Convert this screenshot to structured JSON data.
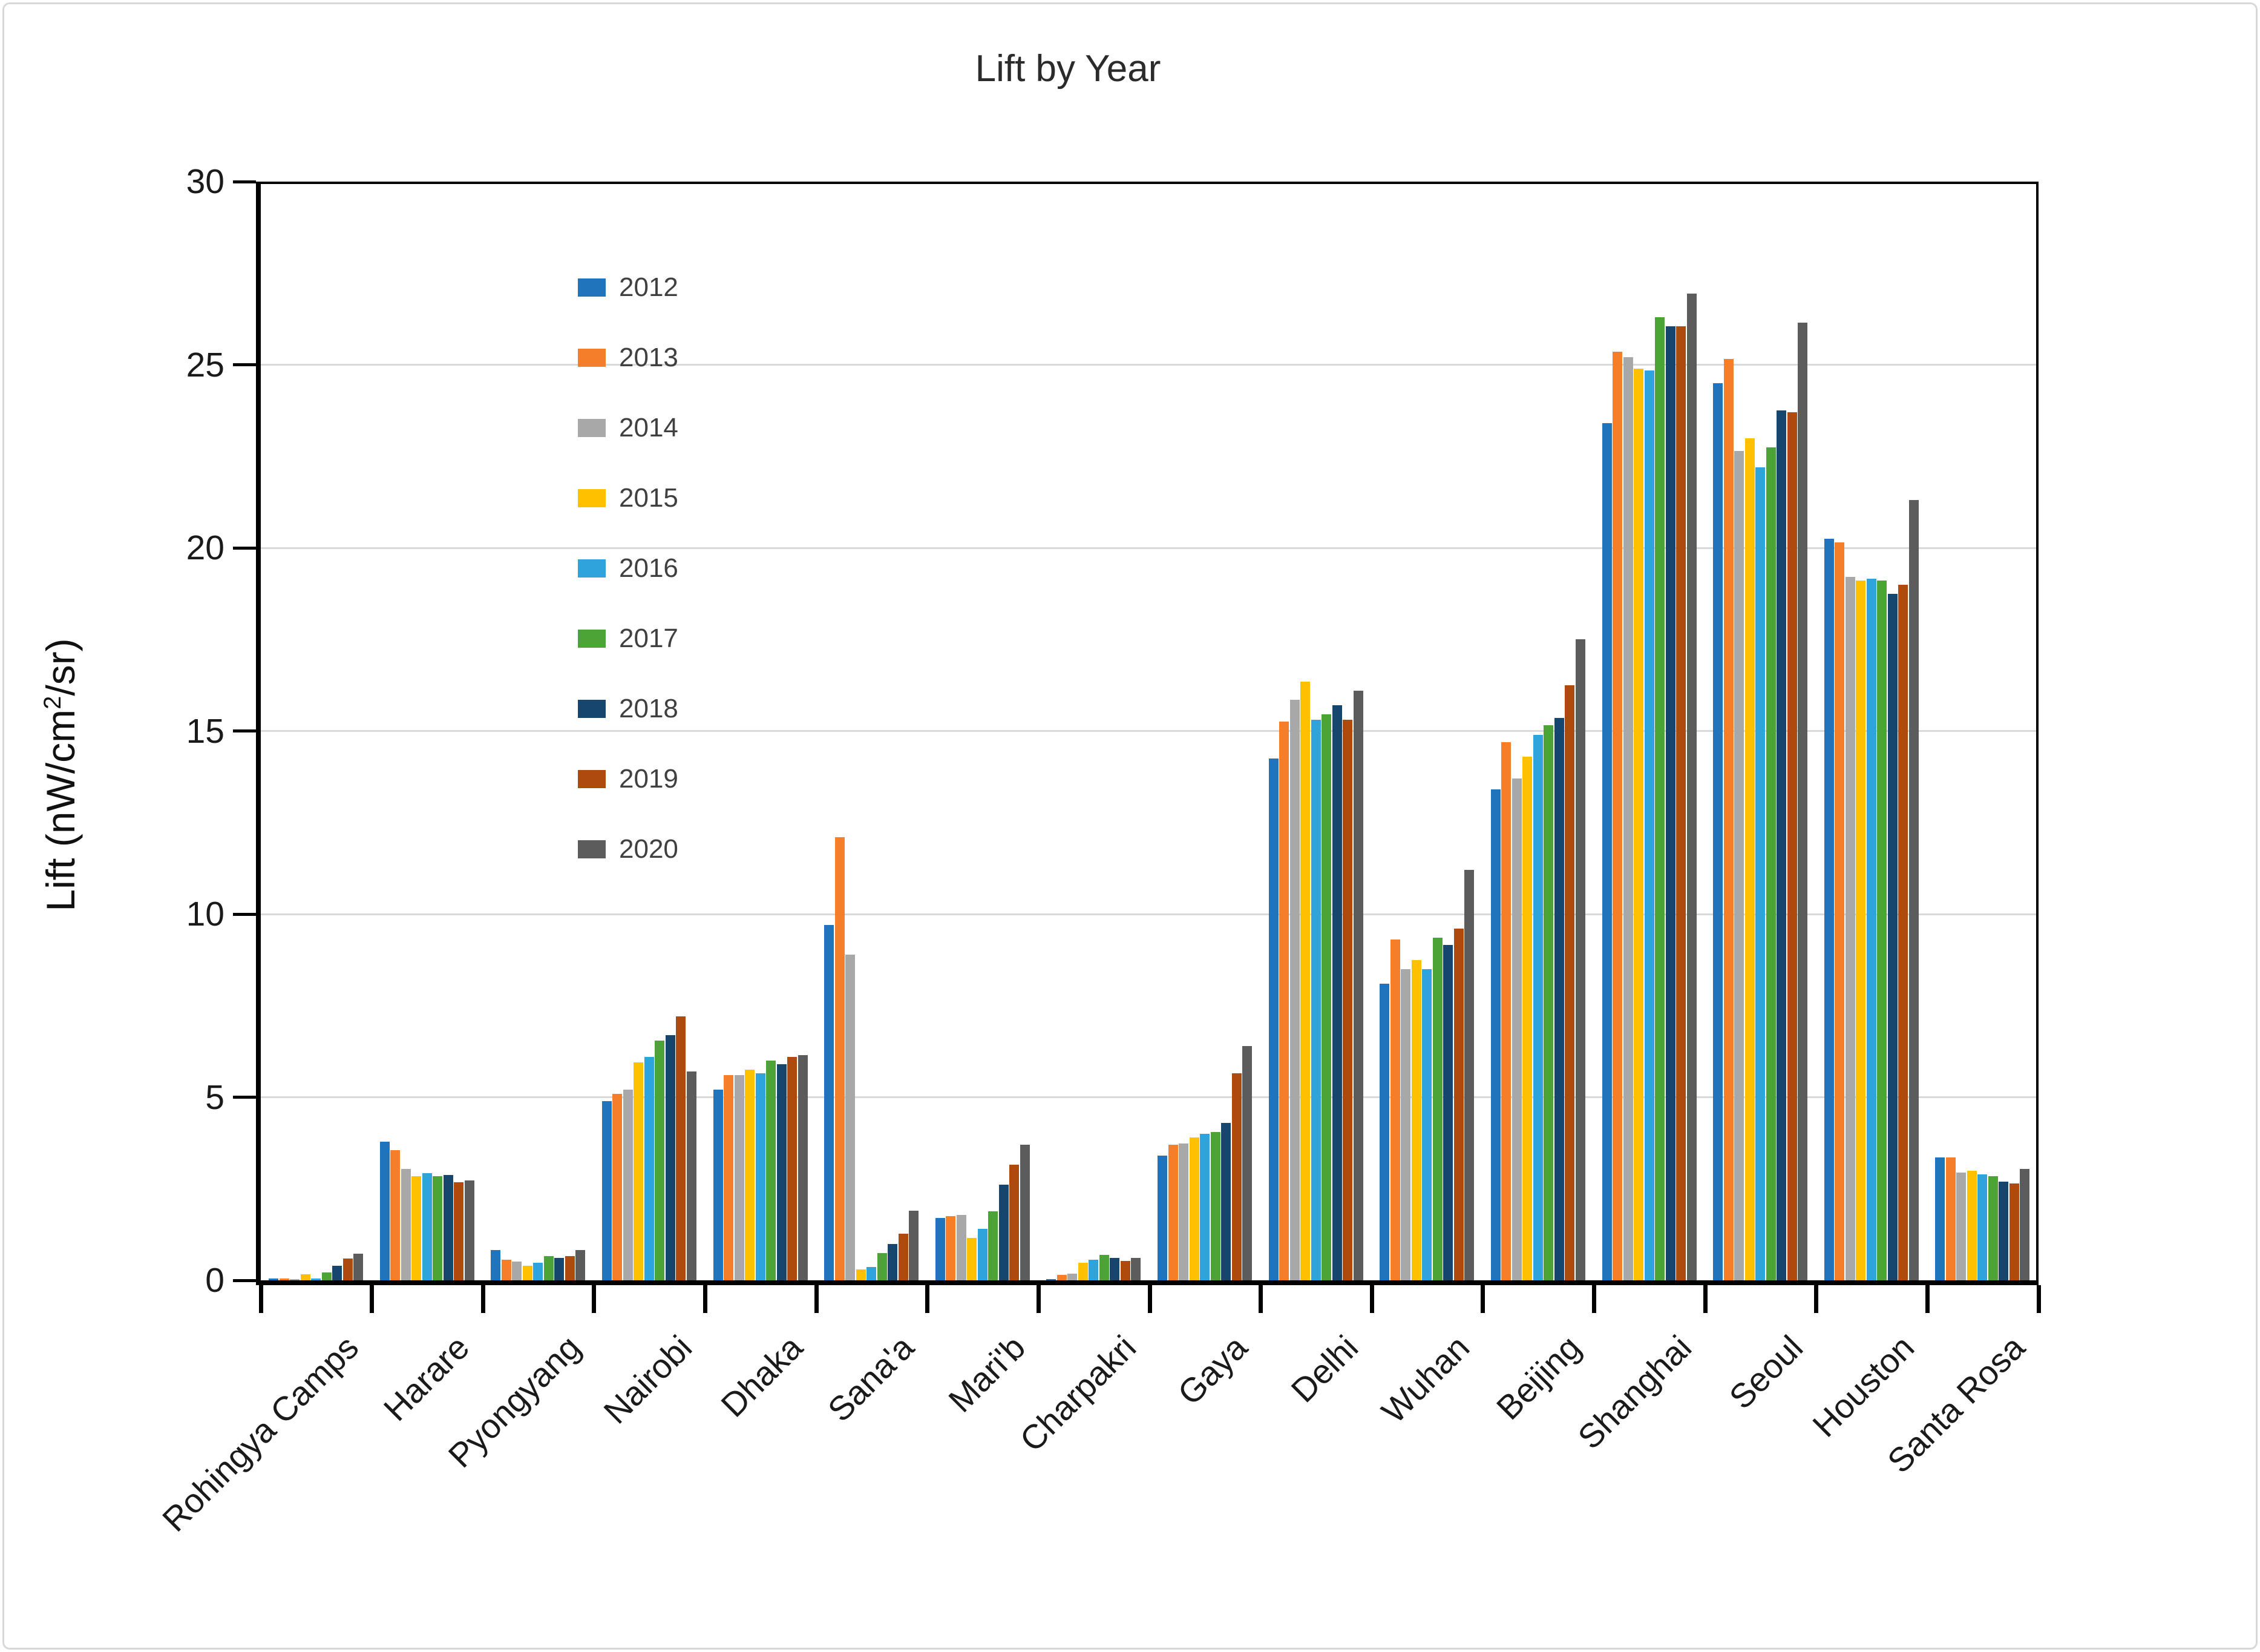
{
  "chart_data": {
    "type": "bar",
    "title": "Lift by Year",
    "ylabel_parts": {
      "prefix": "Lift (nW/cm",
      "sup": "2",
      "suffix": "/sr)"
    },
    "ylim": [
      0,
      30
    ],
    "ytick_step": 5,
    "yticks": [
      "0",
      "5",
      "10",
      "15",
      "20",
      "25",
      "30"
    ],
    "grid": true,
    "legend_position": "inside-top-left",
    "categories": [
      "Rohingya Camps",
      "Harare",
      "Pyongyang",
      "Nairobi",
      "Dhaka",
      "Sana'a",
      "Mari'b",
      "Charpakri",
      "Gaya",
      "Delhi",
      "Wuhan",
      "Beijing",
      "Shanghai",
      "Seoul",
      "Houston",
      "Santa Rosa"
    ],
    "series": [
      {
        "name": "2012",
        "color": "#2074BC",
        "values": [
          0.05,
          3.78,
          0.83,
          4.9,
          5.2,
          9.7,
          1.7,
          0.02,
          3.4,
          14.25,
          8.1,
          13.4,
          23.4,
          24.5,
          20.25,
          3.35
        ]
      },
      {
        "name": "2013",
        "color": "#F57E2B",
        "values": [
          0.05,
          3.55,
          0.57,
          5.1,
          5.6,
          12.1,
          1.75,
          0.15,
          3.7,
          15.25,
          9.3,
          14.7,
          25.35,
          25.15,
          20.15,
          3.35
        ]
      },
      {
        "name": "2014",
        "color": "#A8A8A8",
        "values": [
          0.04,
          3.05,
          0.52,
          5.2,
          5.6,
          8.9,
          1.78,
          0.19,
          3.73,
          15.85,
          8.5,
          13.7,
          25.2,
          22.65,
          19.2,
          2.95
        ]
      },
      {
        "name": "2015",
        "color": "#FFC000",
        "values": [
          0.16,
          2.85,
          0.4,
          5.95,
          5.75,
          0.3,
          1.15,
          0.48,
          3.9,
          16.35,
          8.75,
          14.3,
          24.9,
          23.0,
          19.1,
          3.0
        ]
      },
      {
        "name": "2016",
        "color": "#2EA3DC",
        "values": [
          0.05,
          2.92,
          0.48,
          6.1,
          5.65,
          0.36,
          1.4,
          0.57,
          4.0,
          15.3,
          8.5,
          14.9,
          24.85,
          22.2,
          19.15,
          2.9
        ]
      },
      {
        "name": "2017",
        "color": "#4CA437",
        "values": [
          0.22,
          2.85,
          0.66,
          6.55,
          6.0,
          0.75,
          1.88,
          0.7,
          4.05,
          15.45,
          9.35,
          15.15,
          26.3,
          22.75,
          19.1,
          2.85
        ]
      },
      {
        "name": "2018",
        "color": "#16466E",
        "values": [
          0.4,
          2.88,
          0.61,
          6.7,
          5.9,
          1.0,
          2.62,
          0.61,
          4.3,
          15.7,
          9.15,
          15.35,
          26.05,
          23.75,
          18.75,
          2.7
        ]
      },
      {
        "name": "2019",
        "color": "#AF4A0E",
        "values": [
          0.6,
          2.68,
          0.66,
          7.2,
          6.1,
          1.27,
          3.15,
          0.53,
          5.65,
          15.3,
          9.6,
          16.25,
          26.05,
          23.7,
          19.0,
          2.65
        ]
      },
      {
        "name": "2020",
        "color": "#5C5C5C",
        "values": [
          0.72,
          2.72,
          0.83,
          5.7,
          6.15,
          1.9,
          3.7,
          0.61,
          6.4,
          16.1,
          11.2,
          17.5,
          26.95,
          26.15,
          21.3,
          3.05
        ]
      }
    ]
  }
}
